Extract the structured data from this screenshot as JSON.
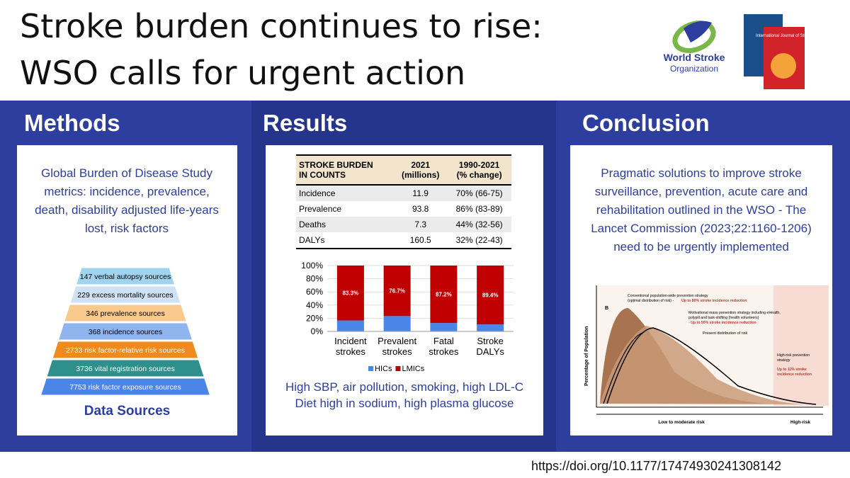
{
  "header": {
    "title_line1": "Stroke burden continues to rise:",
    "title_line2": "WSO calls for urgent action",
    "logo_line1": "World Stroke",
    "logo_line2": "Organization",
    "journal": "International Journal of Stroke"
  },
  "methods": {
    "heading": "Methods",
    "text": "Global Burden of Disease Study metrics: incidence, prevalence, death, disability adjusted life-years lost, risk factors",
    "pyramid": [
      "147 verbal autopsy sources",
      "229 excess mortality sources",
      "346 prevalence sources",
      "368 incidence sources",
      "2733 risk factor-relative risk sources",
      "3736 vital registration sources",
      "7753 risk factor exposure sources"
    ],
    "caption": "Data Sources"
  },
  "results": {
    "heading": "Results",
    "table": {
      "header": [
        [
          "STROKE BURDEN",
          "IN COUNTS"
        ],
        [
          "2021",
          "(millions)"
        ],
        [
          "1990-2021",
          "(% change)"
        ]
      ],
      "rows": [
        [
          "Incidence",
          "11.9",
          "70% (66-75)"
        ],
        [
          "Prevalence",
          "93.8",
          "86% (83-89)"
        ],
        [
          "Deaths",
          "7.3",
          "44% (32-56)"
        ],
        [
          "DALYs",
          "160.5",
          "32% (22-43)"
        ]
      ]
    },
    "chart": {
      "type": "stacked-bar",
      "categories": [
        "Incident strokes",
        "Prevalent strokes",
        "Fatal strokes",
        "Stroke DALYs"
      ],
      "series": [
        {
          "name": "HICs",
          "color": "#4a86e8",
          "values": [
            16.7,
            23.3,
            12.8,
            10.6
          ]
        },
        {
          "name": "LMICs",
          "color": "#c00000",
          "values": [
            83.3,
            76.7,
            87.2,
            89.4
          ],
          "value_labels": [
            "83.3%",
            "76.7%",
            "87.2%",
            "89.4%"
          ]
        }
      ],
      "ylim": [
        0,
        100
      ],
      "yticks": [
        {
          "value": 0,
          "label": "0%"
        },
        {
          "value": 20,
          "label": "20%"
        },
        {
          "value": 40,
          "label": "40%"
        },
        {
          "value": 60,
          "label": "60%"
        },
        {
          "value": 80,
          "label": "80%"
        },
        {
          "value": 100,
          "label": "100%"
        }
      ],
      "grid": true
    },
    "text": [
      "High SBP, air pollution, smoking, high LDL-C",
      "Diet high in sodium, high plasma glucose"
    ]
  },
  "conclusion": {
    "heading": "Conclusion",
    "text": "Pragmatic solutions to improve stroke surveillance, prevention, acute care and rehabilitation outlined in the WSO - The Lancet Commission (2023;22:1160-1206) need to be urgently implemented",
    "figure": {
      "panel": "B",
      "note1": "Conventional population-wide prevention strategy",
      "note1b": "(optimal distribution of risk) -",
      "note1c": "Up to 80% stroke incidence reduction",
      "note2": "Motivational mass prevention strategy including eHealth,",
      "note2b": "polypill and task-shifting (health volunteers)",
      "note2c": "- Up to 50% stroke incidence reduction",
      "note3": "Present distribution of risk",
      "note4": "High-risk prevention",
      "note4b": "strategy",
      "note4c": "Up to 11% stroke",
      "note4d": "incidence reduction",
      "y_label": "Percentage of Population",
      "x_label1": "Low to moderate risk",
      "x_label2": "High-risk"
    }
  },
  "doi": "https://doi.org/10.1177/17474930241308142"
}
